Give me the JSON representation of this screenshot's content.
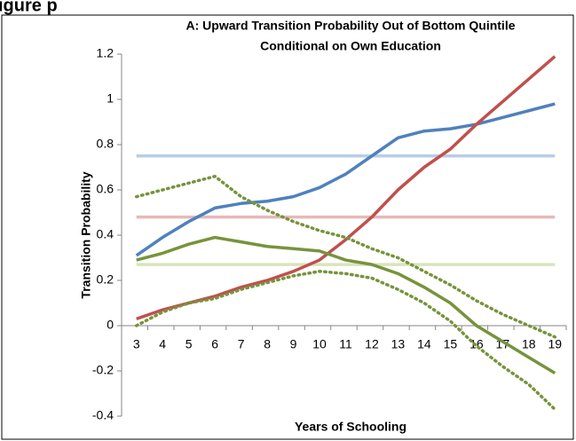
{
  "header_fragment": "igure  p",
  "chart_data": {
    "type": "line",
    "title": [
      "A: Upward Transition Probability Out of Bottom Quintile",
      "Conditional on Own Education"
    ],
    "x_label": "Years of Schooling",
    "y_label": "Transition Probability",
    "categories": [
      "3",
      "4",
      "5",
      "6",
      "7",
      "8",
      "9",
      "10",
      "11",
      "12",
      "13",
      "14",
      "15",
      "16",
      "17",
      "18",
      "19"
    ],
    "ylim": [
      -0.4,
      1.2
    ],
    "yticks": [
      -0.4,
      -0.2,
      0,
      0.2,
      0.4,
      0.6,
      0.8,
      1,
      1.2
    ],
    "series": [
      {
        "color": "#b9cde5",
        "style": "solid",
        "values": [
          0.75,
          0.75,
          0.75,
          0.75,
          0.75,
          0.75,
          0.75,
          0.75,
          0.75,
          0.75,
          0.75,
          0.75,
          0.75,
          0.75,
          0.75,
          0.75,
          0.75
        ]
      },
      {
        "color": "#e6b9b8",
        "style": "solid",
        "values": [
          0.48,
          0.48,
          0.48,
          0.48,
          0.48,
          0.48,
          0.48,
          0.48,
          0.48,
          0.48,
          0.48,
          0.48,
          0.48,
          0.48,
          0.48,
          0.48,
          0.48
        ]
      },
      {
        "color": "#d7e4bd",
        "style": "solid",
        "values": [
          0.27,
          0.27,
          0.27,
          0.27,
          0.27,
          0.27,
          0.27,
          0.27,
          0.27,
          0.27,
          0.27,
          0.27,
          0.27,
          0.27,
          0.27,
          0.27,
          0.27
        ]
      },
      {
        "color": "#4f81bd",
        "style": "solid",
        "values": [
          0.31,
          0.39,
          0.46,
          0.52,
          0.54,
          0.55,
          0.57,
          0.61,
          0.67,
          0.75,
          0.83,
          0.86,
          0.87,
          0.89,
          0.92,
          0.95,
          0.98
        ]
      },
      {
        "color": "#c0504d",
        "style": "solid",
        "values": [
          0.03,
          0.07,
          0.1,
          0.13,
          0.17,
          0.2,
          0.24,
          0.29,
          0.38,
          0.48,
          0.6,
          0.7,
          0.78,
          0.89,
          0.99,
          1.09,
          1.19
        ]
      },
      {
        "color": "#77933c",
        "style": "solid",
        "values": [
          0.29,
          0.32,
          0.36,
          0.39,
          0.37,
          0.35,
          0.34,
          0.33,
          0.29,
          0.27,
          0.23,
          0.17,
          0.1,
          0.0,
          -0.07,
          -0.14,
          -0.21
        ]
      },
      {
        "color": "#77933c",
        "style": "dotted",
        "values": [
          0.57,
          0.6,
          0.63,
          0.66,
          0.57,
          0.51,
          0.46,
          0.42,
          0.39,
          0.34,
          0.3,
          0.24,
          0.18,
          0.11,
          0.05,
          0.0,
          -0.05
        ]
      },
      {
        "color": "#77933c",
        "style": "dotted",
        "values": [
          0.0,
          0.06,
          0.1,
          0.12,
          0.16,
          0.19,
          0.22,
          0.24,
          0.23,
          0.21,
          0.16,
          0.1,
          0.02,
          -0.09,
          -0.18,
          -0.26,
          -0.37
        ]
      }
    ]
  }
}
